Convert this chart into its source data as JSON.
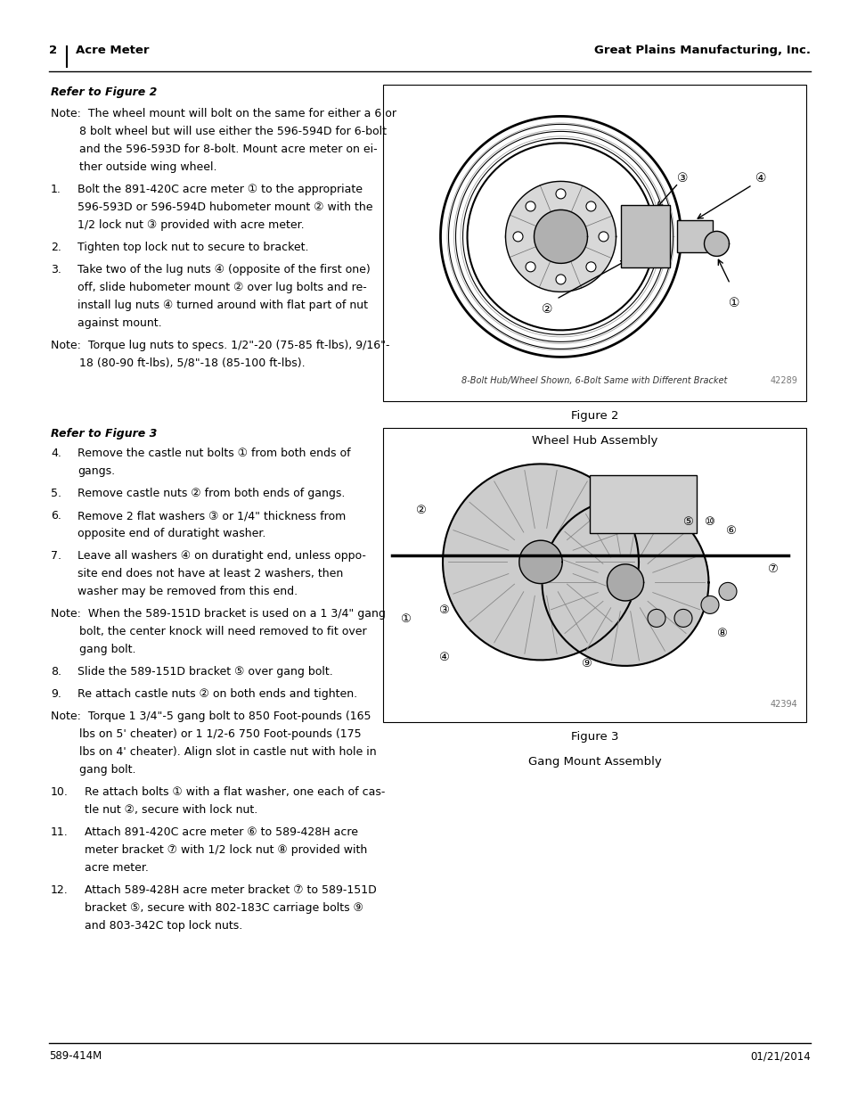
{
  "page_num": "2",
  "section_title": "Acre Meter",
  "company": "Great Plains Manufacturing, Inc.",
  "footer_left": "589-414M",
  "footer_right": "01/21/2014",
  "fig2_caption": "8-Bolt Hub/Wheel Shown, 6-Bolt Same with Different Bracket",
  "fig2_num": "42289",
  "fig2_title1": "Figure 2",
  "fig2_title2": "Wheel Hub Assembly",
  "fig3_title1": "Figure 3",
  "fig3_title2": "Gang Mount Assembly",
  "fig3_num": "42394",
  "bg_color": "#ffffff",
  "text_color": "#000000",
  "box_edge": "#000000",
  "font_size_header": 9.5,
  "font_size_body": 9.0,
  "font_size_caption": 7.0,
  "font_size_fig_title": 9.5,
  "font_size_footer": 8.5
}
